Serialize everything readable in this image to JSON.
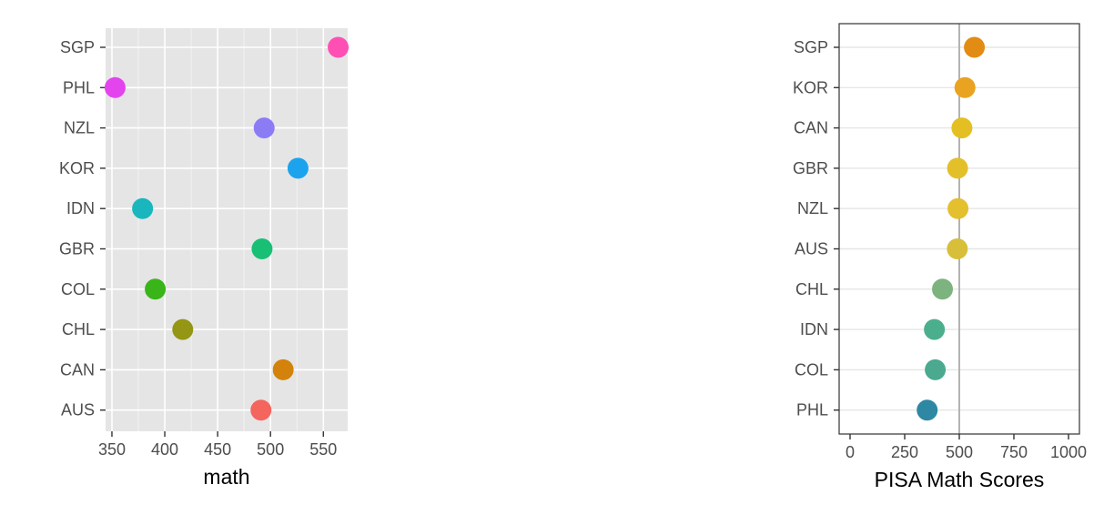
{
  "chart_data": [
    {
      "type": "scatter",
      "title": "",
      "xlabel": "math",
      "ylabel": "",
      "xlim": [
        344,
        573
      ],
      "x_ticks": [
        "350",
        "400",
        "450",
        "500",
        "550"
      ],
      "x_tick_values": [
        350,
        400,
        450,
        500,
        550
      ],
      "grid": true,
      "panel_background": "#E5E5E5",
      "legend": "none",
      "categories": [
        "AUS",
        "CAN",
        "CHL",
        "COL",
        "GBR",
        "IDN",
        "KOR",
        "NZL",
        "PHL",
        "SGP"
      ],
      "points": [
        {
          "country": "SGP",
          "math": 564,
          "color": "#FF4FB5"
        },
        {
          "country": "PHL",
          "math": 353,
          "color": "#E444EE"
        },
        {
          "country": "NZL",
          "math": 494,
          "color": "#8B7CF6"
        },
        {
          "country": "KOR",
          "math": 526,
          "color": "#1CA3EE"
        },
        {
          "country": "IDN",
          "math": 379,
          "color": "#19B6BE"
        },
        {
          "country": "GBR",
          "math": 492,
          "color": "#19BF75"
        },
        {
          "country": "COL",
          "math": 391,
          "color": "#39B419"
        },
        {
          "country": "CHL",
          "math": 417,
          "color": "#949614"
        },
        {
          "country": "CAN",
          "math": 512,
          "color": "#D3820B"
        },
        {
          "country": "AUS",
          "math": 491,
          "color": "#F4655D"
        }
      ]
    },
    {
      "type": "scatter",
      "title": "",
      "xlabel": "PISA Math Scores",
      "ylabel": "",
      "xlim": [
        -50,
        1050
      ],
      "x_ticks": [
        "0",
        "250",
        "500",
        "750",
        "1000"
      ],
      "x_tick_values": [
        0,
        250,
        500,
        750,
        1000
      ],
      "grid": true,
      "panel_background": "#FFFFFF",
      "reference_line": 500,
      "legend": "none",
      "categories": [
        "PHL",
        "COL",
        "IDN",
        "CHL",
        "AUS",
        "NZL",
        "GBR",
        "CAN",
        "KOR",
        "SGP"
      ],
      "points": [
        {
          "country": "SGP",
          "math": 569,
          "color": "#E38C13"
        },
        {
          "country": "KOR",
          "math": 526,
          "color": "#E9A320"
        },
        {
          "country": "CAN",
          "math": 512,
          "color": "#E4BF24"
        },
        {
          "country": "GBR",
          "math": 492,
          "color": "#E3BF2A"
        },
        {
          "country": "NZL",
          "math": 494,
          "color": "#E4BF2E"
        },
        {
          "country": "AUS",
          "math": 491,
          "color": "#D8BF3A"
        },
        {
          "country": "CHL",
          "math": 423,
          "color": "#7DB37E"
        },
        {
          "country": "IDN",
          "math": 386,
          "color": "#4BAF8D"
        },
        {
          "country": "COL",
          "math": 390,
          "color": "#4BA990"
        },
        {
          "country": "PHL",
          "math": 353,
          "color": "#2E88A4"
        }
      ]
    }
  ]
}
